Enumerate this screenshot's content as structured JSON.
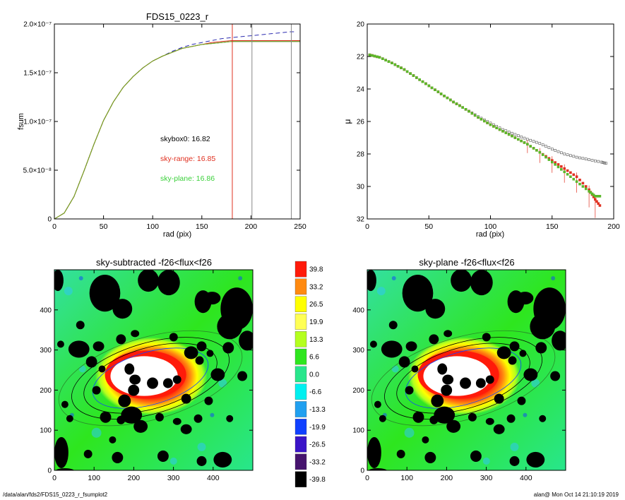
{
  "footer": {
    "path": "/data/alan/fds2/FDS15_0223_r_fsumplot2",
    "stamp": "alan@  Mon Oct 14 21:10:19 2019"
  },
  "chart_data": [
    {
      "id": "fsum",
      "type": "line",
      "title": "FDS15_0223_r",
      "xlabel": "rad (pix)",
      "ylabel": "fsum",
      "xlim": [
        0,
        250
      ],
      "ylim": [
        0,
        2e-07
      ],
      "x_ticks": [
        {
          "v": 0,
          "label": "0"
        },
        {
          "v": 50,
          "label": "50"
        },
        {
          "v": 100,
          "label": "100"
        },
        {
          "v": 150,
          "label": "150"
        },
        {
          "v": 200,
          "label": "200"
        },
        {
          "v": 250,
          "label": "250"
        }
      ],
      "y_ticks": [
        {
          "v": 0,
          "label": "0"
        },
        {
          "v": 5e-08,
          "label": "5.0×10⁻⁸"
        },
        {
          "v": 1e-07,
          "label": "1.0×10⁻⁷"
        },
        {
          "v": 1.5e-07,
          "label": "1.5×10⁻⁷"
        },
        {
          "v": 2e-07,
          "label": "2.0×10⁻⁷"
        }
      ],
      "series": [
        {
          "color": "#2b2bb0",
          "dash": true,
          "x": [
            0,
            10,
            20,
            30,
            40,
            50,
            60,
            70,
            80,
            90,
            100,
            110,
            120,
            130,
            140,
            150,
            160,
            170,
            180,
            190,
            200,
            210,
            220,
            230,
            240,
            245
          ],
          "y": [
            0,
            6e-09,
            2.3e-08,
            4.9e-08,
            7.6e-08,
            1.01e-07,
            1.2e-07,
            1.35e-07,
            1.46e-07,
            1.55e-07,
            1.62e-07,
            1.67e-07,
            1.72e-07,
            1.76e-07,
            1.79e-07,
            1.81e-07,
            1.83e-07,
            1.85e-07,
            1.86e-07,
            1.87e-07,
            1.88e-07,
            1.89e-07,
            1.9e-07,
            1.91e-07,
            1.92e-07,
            1.92e-07
          ]
        },
        {
          "color": "#222222",
          "dash": false,
          "x": [
            0,
            10,
            20,
            30,
            40,
            50,
            60,
            70,
            80,
            90,
            100,
            110,
            120,
            130,
            140,
            150,
            160,
            170,
            180,
            190,
            200,
            210,
            220,
            230,
            240,
            250
          ],
          "y": [
            0,
            6e-09,
            2.3e-08,
            4.9e-08,
            7.6e-08,
            1.01e-07,
            1.2e-07,
            1.35e-07,
            1.46e-07,
            1.55e-07,
            1.62e-07,
            1.67e-07,
            1.71e-07,
            1.75e-07,
            1.77e-07,
            1.79e-07,
            1.8e-07,
            1.81e-07,
            1.82e-07,
            1.82e-07,
            1.82e-07,
            1.82e-07,
            1.82e-07,
            1.82e-07,
            1.82e-07,
            1.82e-07
          ]
        },
        {
          "color": "#e03020",
          "dash": false,
          "x": [
            0,
            10,
            20,
            30,
            40,
            50,
            60,
            70,
            80,
            90,
            100,
            110,
            120,
            130,
            140,
            150,
            160,
            170,
            180,
            190,
            200,
            210,
            220,
            230,
            240,
            250
          ],
          "y": [
            0,
            6e-09,
            2.3e-08,
            4.9e-08,
            7.6e-08,
            1.01e-07,
            1.2e-07,
            1.35e-07,
            1.46e-07,
            1.55e-07,
            1.62e-07,
            1.67e-07,
            1.71e-07,
            1.75e-07,
            1.77e-07,
            1.79e-07,
            1.81e-07,
            1.82e-07,
            1.83e-07,
            1.83e-07,
            1.83e-07,
            1.83e-07,
            1.83e-07,
            1.83e-07,
            1.83e-07,
            1.83e-07
          ]
        },
        {
          "color": "#70b020",
          "dash": false,
          "x": [
            0,
            10,
            20,
            30,
            40,
            50,
            60,
            70,
            80,
            90,
            100,
            110,
            120,
            130,
            140,
            150,
            160,
            170,
            180,
            190,
            200,
            210,
            220,
            230,
            240,
            250
          ],
          "y": [
            0,
            6e-09,
            2.3e-08,
            4.9e-08,
            7.6e-08,
            1.01e-07,
            1.2e-07,
            1.35e-07,
            1.46e-07,
            1.55e-07,
            1.62e-07,
            1.67e-07,
            1.71e-07,
            1.75e-07,
            1.77e-07,
            1.79e-07,
            1.8e-07,
            1.81e-07,
            1.82e-07,
            1.82e-07,
            1.82e-07,
            1.82e-07,
            1.82e-07,
            1.82e-07,
            1.82e-07,
            1.82e-07
          ]
        }
      ],
      "vlines": [
        {
          "x": 181,
          "color": "#e03020"
        },
        {
          "x": 201,
          "color": "#888888"
        },
        {
          "x": 241,
          "color": "#888888"
        }
      ],
      "annotations": [
        {
          "text": "skybox0: 16.82",
          "color": "#000000"
        },
        {
          "text": "sky-range: 16.85",
          "color": "#e03020"
        },
        {
          "text": "sky-plane: 16.86",
          "color": "#3ad03a"
        }
      ]
    },
    {
      "id": "mu",
      "type": "scatter",
      "xlabel": "rad (pix)",
      "ylabel": "μ",
      "xlim": [
        0,
        200
      ],
      "ylim": [
        32,
        20
      ],
      "x_ticks": [
        {
          "v": 0,
          "label": "0"
        },
        {
          "v": 50,
          "label": "50"
        },
        {
          "v": 100,
          "label": "100"
        },
        {
          "v": 150,
          "label": "150"
        },
        {
          "v": 200,
          "label": "200"
        }
      ],
      "y_ticks": [
        {
          "v": 20,
          "label": "20"
        },
        {
          "v": 22,
          "label": "22"
        },
        {
          "v": 24,
          "label": "24"
        },
        {
          "v": 26,
          "label": "26"
        },
        {
          "v": 28,
          "label": "28"
        },
        {
          "v": 30,
          "label": "30"
        },
        {
          "v": 32,
          "label": "32"
        }
      ],
      "series": [
        {
          "color": "#555555",
          "x": [
            2,
            10,
            20,
            30,
            40,
            50,
            60,
            70,
            80,
            90,
            100,
            110,
            120,
            130,
            140,
            150,
            160,
            170,
            180,
            190,
            195
          ],
          "y": [
            21.9,
            22.05,
            22.4,
            22.8,
            23.3,
            23.8,
            24.3,
            24.8,
            25.25,
            25.7,
            26.1,
            26.5,
            26.8,
            27.1,
            27.35,
            27.7,
            28.0,
            28.2,
            28.35,
            28.5,
            28.6
          ]
        },
        {
          "color": "#e03020",
          "x": [
            2,
            10,
            20,
            30,
            40,
            50,
            60,
            70,
            80,
            90,
            100,
            110,
            120,
            130,
            140,
            150,
            160,
            170,
            180,
            185,
            190
          ],
          "y": [
            21.9,
            22.05,
            22.4,
            22.8,
            23.3,
            23.8,
            24.3,
            24.8,
            25.25,
            25.75,
            26.2,
            26.6,
            27.0,
            27.4,
            27.9,
            28.4,
            28.9,
            29.4,
            30.2,
            30.8,
            31.3
          ]
        },
        {
          "color": "#5ab82a",
          "x": [
            2,
            10,
            20,
            30,
            40,
            50,
            60,
            70,
            80,
            90,
            100,
            110,
            120,
            130,
            140,
            150,
            160,
            170,
            180,
            185,
            190
          ],
          "y": [
            21.9,
            22.05,
            22.4,
            22.8,
            23.3,
            23.8,
            24.3,
            24.8,
            25.25,
            25.75,
            26.2,
            26.6,
            27.0,
            27.4,
            27.9,
            28.5,
            29.1,
            29.7,
            30.3,
            30.6,
            30.6
          ]
        }
      ]
    },
    {
      "id": "map-left",
      "type": "heatmap",
      "title": "sky-subtracted -f26<flux<f26",
      "xlim": [
        0,
        500
      ],
      "ylim": [
        0,
        500
      ],
      "x_ticks": [
        {
          "v": 0,
          "label": "0"
        },
        {
          "v": 100,
          "label": "100"
        },
        {
          "v": 200,
          "label": "200"
        },
        {
          "v": 300,
          "label": "300"
        },
        {
          "v": 400,
          "label": "400"
        }
      ],
      "y_ticks": [
        {
          "v": 0,
          "label": "0"
        },
        {
          "v": 100,
          "label": "100"
        },
        {
          "v": 200,
          "label": "200"
        },
        {
          "v": 300,
          "label": "300"
        },
        {
          "v": 400,
          "label": "400"
        }
      ]
    },
    {
      "id": "map-right",
      "type": "heatmap",
      "title": "sky-plane -f26<flux<f26",
      "xlim": [
        0,
        500
      ],
      "ylim": [
        0,
        500
      ],
      "x_ticks": [
        {
          "v": 0,
          "label": "0"
        },
        {
          "v": 100,
          "label": "100"
        },
        {
          "v": 200,
          "label": "200"
        },
        {
          "v": 300,
          "label": "300"
        },
        {
          "v": 400,
          "label": "400"
        }
      ],
      "y_ticks": [
        {
          "v": 0,
          "label": "0"
        },
        {
          "v": 100,
          "label": "100"
        },
        {
          "v": 200,
          "label": "200"
        },
        {
          "v": 300,
          "label": "300"
        },
        {
          "v": 400,
          "label": "400"
        }
      ]
    }
  ],
  "colorbar": [
    {
      "label": "39.8",
      "color": "#ff1a0a"
    },
    {
      "label": "33.2",
      "color": "#ff8a10"
    },
    {
      "label": "26.5",
      "color": "#ffff00"
    },
    {
      "label": "19.9",
      "color": "#ffff55"
    },
    {
      "label": "13.3",
      "color": "#b4ff1e"
    },
    {
      "label": "6.6",
      "color": "#2ee61e"
    },
    {
      "label": "0.0",
      "color": "#28e68c"
    },
    {
      "label": "-6.6",
      "color": "#00f0f0"
    },
    {
      "label": "-13.3",
      "color": "#20a0f0"
    },
    {
      "label": "-19.9",
      "color": "#1040ff"
    },
    {
      "label": "-26.5",
      "color": "#3a14c8"
    },
    {
      "label": "-33.2",
      "color": "#46146e"
    },
    {
      "label": "-39.8",
      "color": "#000000"
    }
  ]
}
